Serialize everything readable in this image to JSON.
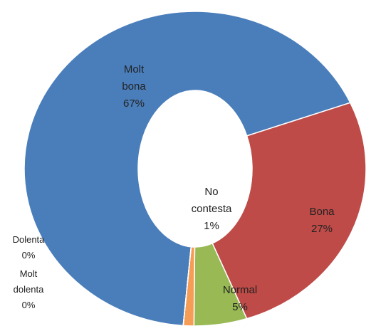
{
  "chart_data": {
    "type": "donut",
    "categories": [
      "Molt bona",
      "Bona",
      "Normal",
      "No contesta",
      "Dolenta",
      "Molt dolenta"
    ],
    "values": [
      67,
      27,
      5,
      1,
      0,
      0
    ],
    "value_labels": [
      "67%",
      "27%",
      "5%",
      "1%",
      "0%",
      "0%"
    ],
    "colors": [
      "#4a7ebb",
      "#be4b48",
      "#98b954",
      "#f59d56",
      "#7d60a0",
      "#46aac5"
    ],
    "start_angle": 184
  }
}
